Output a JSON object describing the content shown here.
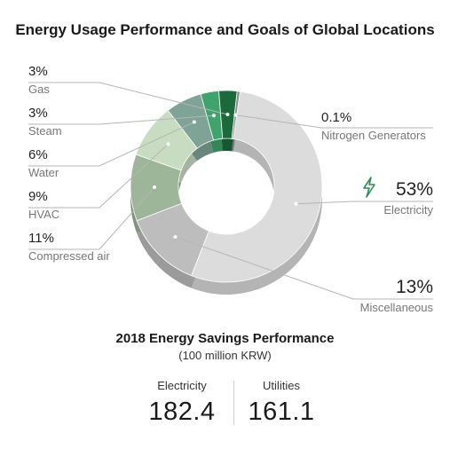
{
  "title": "Energy Usage Performance and Goals of Global Locations",
  "chart_data": {
    "type": "pie",
    "title": "Energy Usage Performance and Goals of Global Locations",
    "slices": [
      {
        "label": "Electricity",
        "value": 53,
        "value_text": "53%",
        "color": "#dcdcdc",
        "side": "right"
      },
      {
        "label": "Miscellaneous",
        "value": 13,
        "value_text": "13%",
        "color": "#bdbdbd",
        "side": "right"
      },
      {
        "label": "Compressed air",
        "value": 11,
        "value_text": "11%",
        "color": "#9db598",
        "side": "left"
      },
      {
        "label": "HVAC",
        "value": 9,
        "value_text": "9%",
        "color": "#c8dcc2",
        "side": "left"
      },
      {
        "label": "Water",
        "value": 6,
        "value_text": "6%",
        "color": "#7fa397",
        "side": "left"
      },
      {
        "label": "Steam",
        "value": 3,
        "value_text": "3%",
        "color": "#3fa46c",
        "side": "left"
      },
      {
        "label": "Gas",
        "value": 3,
        "value_text": "3%",
        "color": "#1a6a3c",
        "side": "left"
      },
      {
        "label": "Nitrogen Generators",
        "value": 0.1,
        "value_text": "0.1%",
        "color": "#8a8a8a",
        "side": "right"
      }
    ]
  },
  "savings": {
    "title": "2018 Energy Savings Performance",
    "unit": "(100 million KRW)",
    "items": [
      {
        "label": "Electricity",
        "value": "182.4"
      },
      {
        "label": "Utilities",
        "value": "161.1"
      }
    ]
  },
  "icons": {
    "electricity": "lightning-bolt-icon"
  },
  "colors": {
    "accent_green": "#2e8b57"
  }
}
